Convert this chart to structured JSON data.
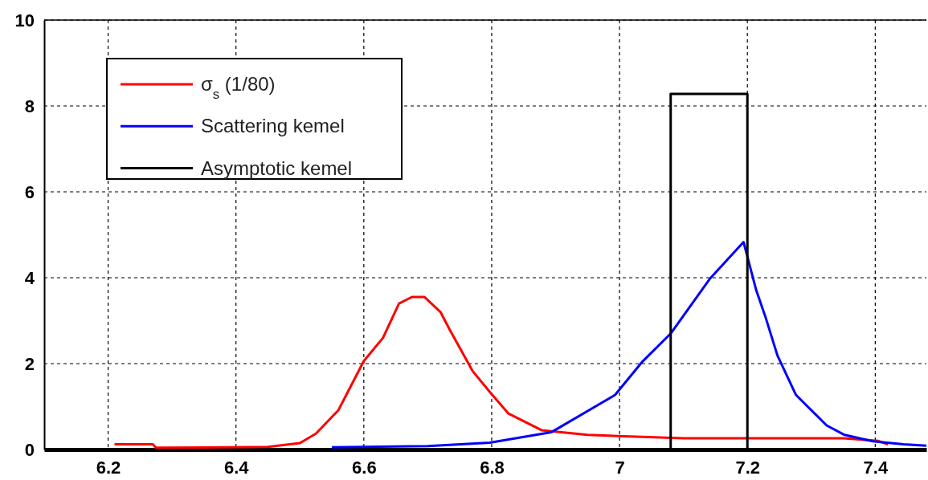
{
  "chart_data": {
    "type": "line",
    "xlim": [
      6.1,
      7.48
    ],
    "xticks": [
      6.2,
      6.4,
      6.6,
      6.8,
      7,
      7.2,
      7.4
    ],
    "ylim": [
      0,
      10
    ],
    "yticks": [
      0,
      2,
      4,
      6,
      8,
      10
    ],
    "grid": true,
    "legend": "top left",
    "line_style": "solid",
    "marker": "none",
    "series": [
      {
        "name": "σ$_{s}$ (1/80)",
        "color": "#ff0000",
        "x": [
          6.21,
          6.27,
          6.275,
          6.45,
          6.5,
          6.525,
          6.56,
          6.6,
          6.63,
          6.655,
          6.675,
          6.695,
          6.72,
          6.734,
          6.77,
          6.797,
          6.826,
          6.878,
          6.95,
          7.1,
          7.35,
          7.405,
          7.42
        ],
        "values": [
          0.12,
          0.12,
          0.04,
          0.06,
          0.15,
          0.37,
          0.91,
          2.06,
          2.6,
          3.4,
          3.55,
          3.55,
          3.2,
          2.8,
          1.83,
          1.34,
          0.84,
          0.45,
          0.34,
          0.26,
          0.26,
          0.2,
          0.12
        ]
      },
      {
        "name": "Scattering kemel",
        "color": "#0000ff",
        "x": [
          6.55,
          6.7,
          6.797,
          6.893,
          6.993,
          7.036,
          7.08,
          7.141,
          7.194,
          7.214,
          7.228,
          7.247,
          7.276,
          7.324,
          7.352,
          7.396,
          7.444,
          7.48
        ],
        "values": [
          0.05,
          0.08,
          0.16,
          0.4,
          1.27,
          2.05,
          2.7,
          3.97,
          4.83,
          3.7,
          3.1,
          2.19,
          1.27,
          0.56,
          0.34,
          0.19,
          0.12,
          0.09
        ]
      },
      {
        "name": "Asymptotic kemel",
        "color": "#000000",
        "x": [
          7.08,
          7.08,
          7.2,
          7.2
        ],
        "values": [
          0,
          8.28,
          8.28,
          0
        ]
      }
    ]
  }
}
